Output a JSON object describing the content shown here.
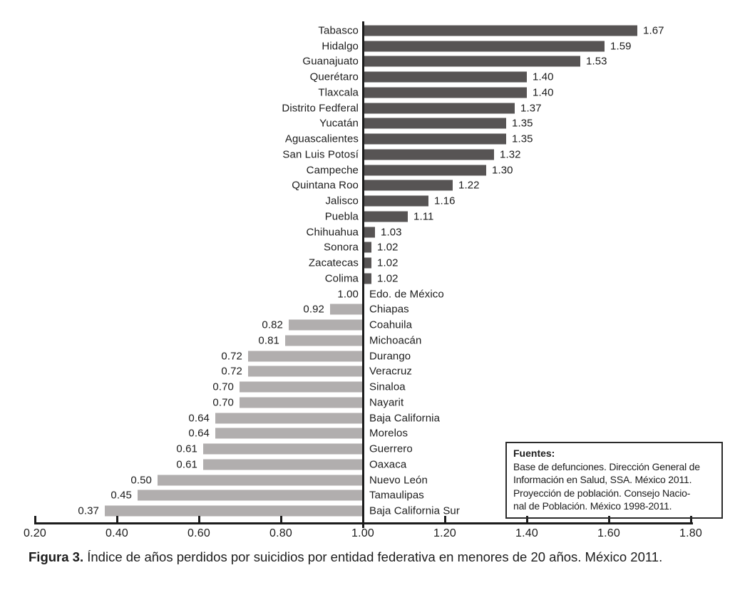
{
  "caption": {
    "prefix": "Figura 3.",
    "text": " Índice de años perdidos por suicidios por entidad federativa en menores de 20 años. México 2011."
  },
  "fuentes": {
    "title": "Fuentes:",
    "lines": [
      "Base de defunciones. Dirección General de",
      "Información en Salud, SSA. México 2011.",
      "Proyección de población. Consejo Nacio-",
      "nal de Población. México 1998-2011."
    ]
  },
  "chart_data": {
    "type": "bar",
    "orientation": "horizontal",
    "title": "Índice de años perdidos por suicidios por entidad federativa en menores de 20 años. México 2011",
    "xlabel": "",
    "ylabel": "",
    "baseline": 1.0,
    "xlim": [
      0.2,
      1.8
    ],
    "x_tick_labels": [
      "0.20",
      "0.40",
      "0.60",
      "0.80",
      "1.00",
      "1.20",
      "1.40",
      "1.60",
      "1.80"
    ],
    "grid": false,
    "legend": null,
    "colors": {
      "above_baseline": "#575454",
      "below_baseline": "#b1aeae",
      "axis": "#1c1c1c"
    },
    "entries": [
      {
        "name": "Tabasco",
        "value": 1.67
      },
      {
        "name": "Hidalgo",
        "value": 1.59
      },
      {
        "name": "Guanajuato",
        "value": 1.53
      },
      {
        "name": "Querétaro",
        "value": 1.4
      },
      {
        "name": "Tlaxcala",
        "value": 1.4
      },
      {
        "name": "Distrito Fedferal",
        "value": 1.37
      },
      {
        "name": "Yucatán",
        "value": 1.35
      },
      {
        "name": "Aguascalientes",
        "value": 1.35
      },
      {
        "name": "San Luis Potosí",
        "value": 1.32
      },
      {
        "name": "Campeche",
        "value": 1.3
      },
      {
        "name": "Quintana Roo",
        "value": 1.22
      },
      {
        "name": "Jalisco",
        "value": 1.16
      },
      {
        "name": "Puebla",
        "value": 1.11
      },
      {
        "name": "Chihuahua",
        "value": 1.03
      },
      {
        "name": "Sonora",
        "value": 1.02
      },
      {
        "name": "Zacatecas",
        "value": 1.02
      },
      {
        "name": "Colima",
        "value": 1.02
      },
      {
        "name": "Edo. de México",
        "value": 1.0
      },
      {
        "name": "Chiapas",
        "value": 0.92
      },
      {
        "name": "Coahuila",
        "value": 0.82
      },
      {
        "name": "Michoacán",
        "value": 0.81
      },
      {
        "name": "Durango",
        "value": 0.72
      },
      {
        "name": "Veracruz",
        "value": 0.72
      },
      {
        "name": "Sinaloa",
        "value": 0.7
      },
      {
        "name": "Nayarit",
        "value": 0.7
      },
      {
        "name": "Baja California",
        "value": 0.64
      },
      {
        "name": "Morelos",
        "value": 0.64
      },
      {
        "name": "Guerrero",
        "value": 0.61
      },
      {
        "name": "Oaxaca",
        "value": 0.61
      },
      {
        "name": "Nuevo León",
        "value": 0.5
      },
      {
        "name": "Tamaulipas",
        "value": 0.45
      },
      {
        "name": "Baja California Sur",
        "value": 0.37
      }
    ]
  }
}
